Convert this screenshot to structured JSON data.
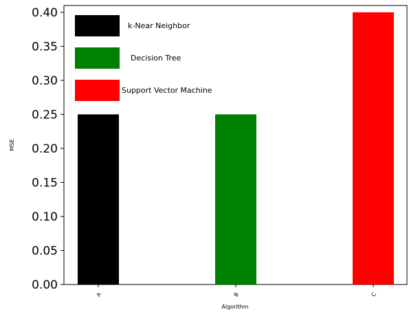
{
  "chart_data": {
    "type": "bar",
    "categories": [
      "A",
      "B",
      "C"
    ],
    "values": [
      0.25,
      0.25,
      0.4
    ],
    "colors": [
      "#000000",
      "#008000",
      "#ff0000"
    ],
    "series_names": [
      "k-Near Neighbor",
      "Decision Tree",
      "Support Vector Machine"
    ],
    "title": "",
    "xlabel": "Algorithm",
    "ylabel": "MSE",
    "ylim": [
      0,
      0.41
    ],
    "yticks": [
      0.0,
      0.05,
      0.1,
      0.15,
      0.2,
      0.25,
      0.3,
      0.35,
      0.4
    ],
    "ytick_labels": [
      "0.00",
      "0.05",
      "0.10",
      "0.15",
      "0.20",
      "0.25",
      "0.30",
      "0.35",
      "0.40"
    ],
    "legend": {
      "placement": "top-left",
      "entries": [
        {
          "label": "k-Near Neighbor",
          "color": "#000000"
        },
        {
          "label": "Decision Tree",
          "color": "#008000"
        },
        {
          "label": "Support Vector Machine",
          "color": "#ff0000"
        }
      ]
    },
    "grid": false
  }
}
